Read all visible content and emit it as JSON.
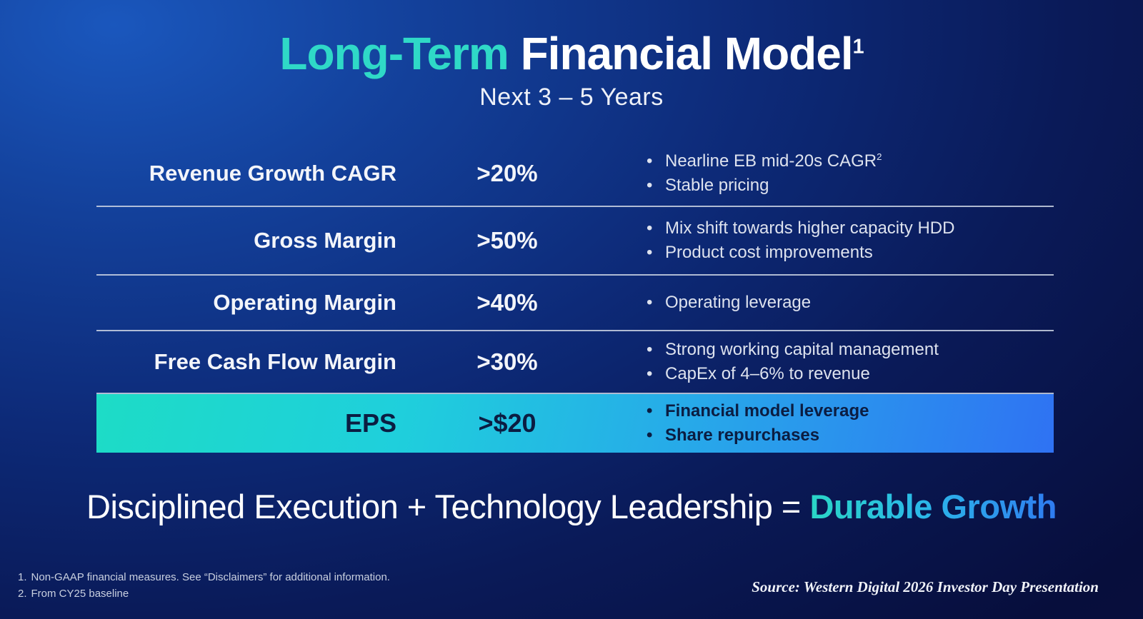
{
  "slide": {
    "title": {
      "highlight": "Long-Term",
      "rest": " Financial Model",
      "sup": "1"
    },
    "subtitle": "Next 3 – 5 Years",
    "table": {
      "rows": [
        {
          "label": "Revenue Growth CAGR",
          "value": ">20%",
          "bullets": [
            {
              "text": "Nearline EB mid-20s CAGR",
              "sup": "2"
            },
            {
              "text": "Stable pricing"
            }
          ]
        },
        {
          "label": "Gross Margin",
          "value": ">50%",
          "bullets": [
            {
              "text": "Mix shift towards higher capacity HDD"
            },
            {
              "text": "Product cost improvements"
            }
          ]
        },
        {
          "label": "Operating Margin",
          "value": ">40%",
          "bullets": [
            {
              "text": "Operating leverage"
            }
          ]
        },
        {
          "label": "Free Cash Flow Margin",
          "value": ">30%",
          "bullets": [
            {
              "text": "Strong working capital management"
            },
            {
              "text": "CapEx of 4–6% to revenue"
            }
          ]
        },
        {
          "label": "EPS",
          "value": ">$20",
          "highlighted": true,
          "bullets": [
            {
              "text": "Financial model leverage"
            },
            {
              "text": "Share repurchases"
            }
          ]
        }
      ]
    },
    "tagline": {
      "plain": "Disciplined Execution + Technology Leadership = ",
      "highlight": "Durable Growth"
    },
    "footnotes": [
      {
        "num": "1.",
        "text": "Non-GAAP financial measures. See “Disclaimers” for additional information."
      },
      {
        "num": "2.",
        "text": "From CY25 baseline"
      }
    ],
    "source": "Source: Western Digital 2026 Investor Day Presentation"
  },
  "colors": {
    "accent_teal": "#2fd9c7",
    "accent_blue": "#2f7bf0",
    "eps_bar_gradient": [
      "#1ddcc6",
      "#1fcfdc",
      "#27a9e9",
      "#2f72f3"
    ],
    "background_bright": "#1a57bd",
    "background_dark": "#070e3c",
    "divider": "#cdd5e4",
    "bullet_text": "#dde2ee",
    "eps_text": "#0b1d42"
  }
}
